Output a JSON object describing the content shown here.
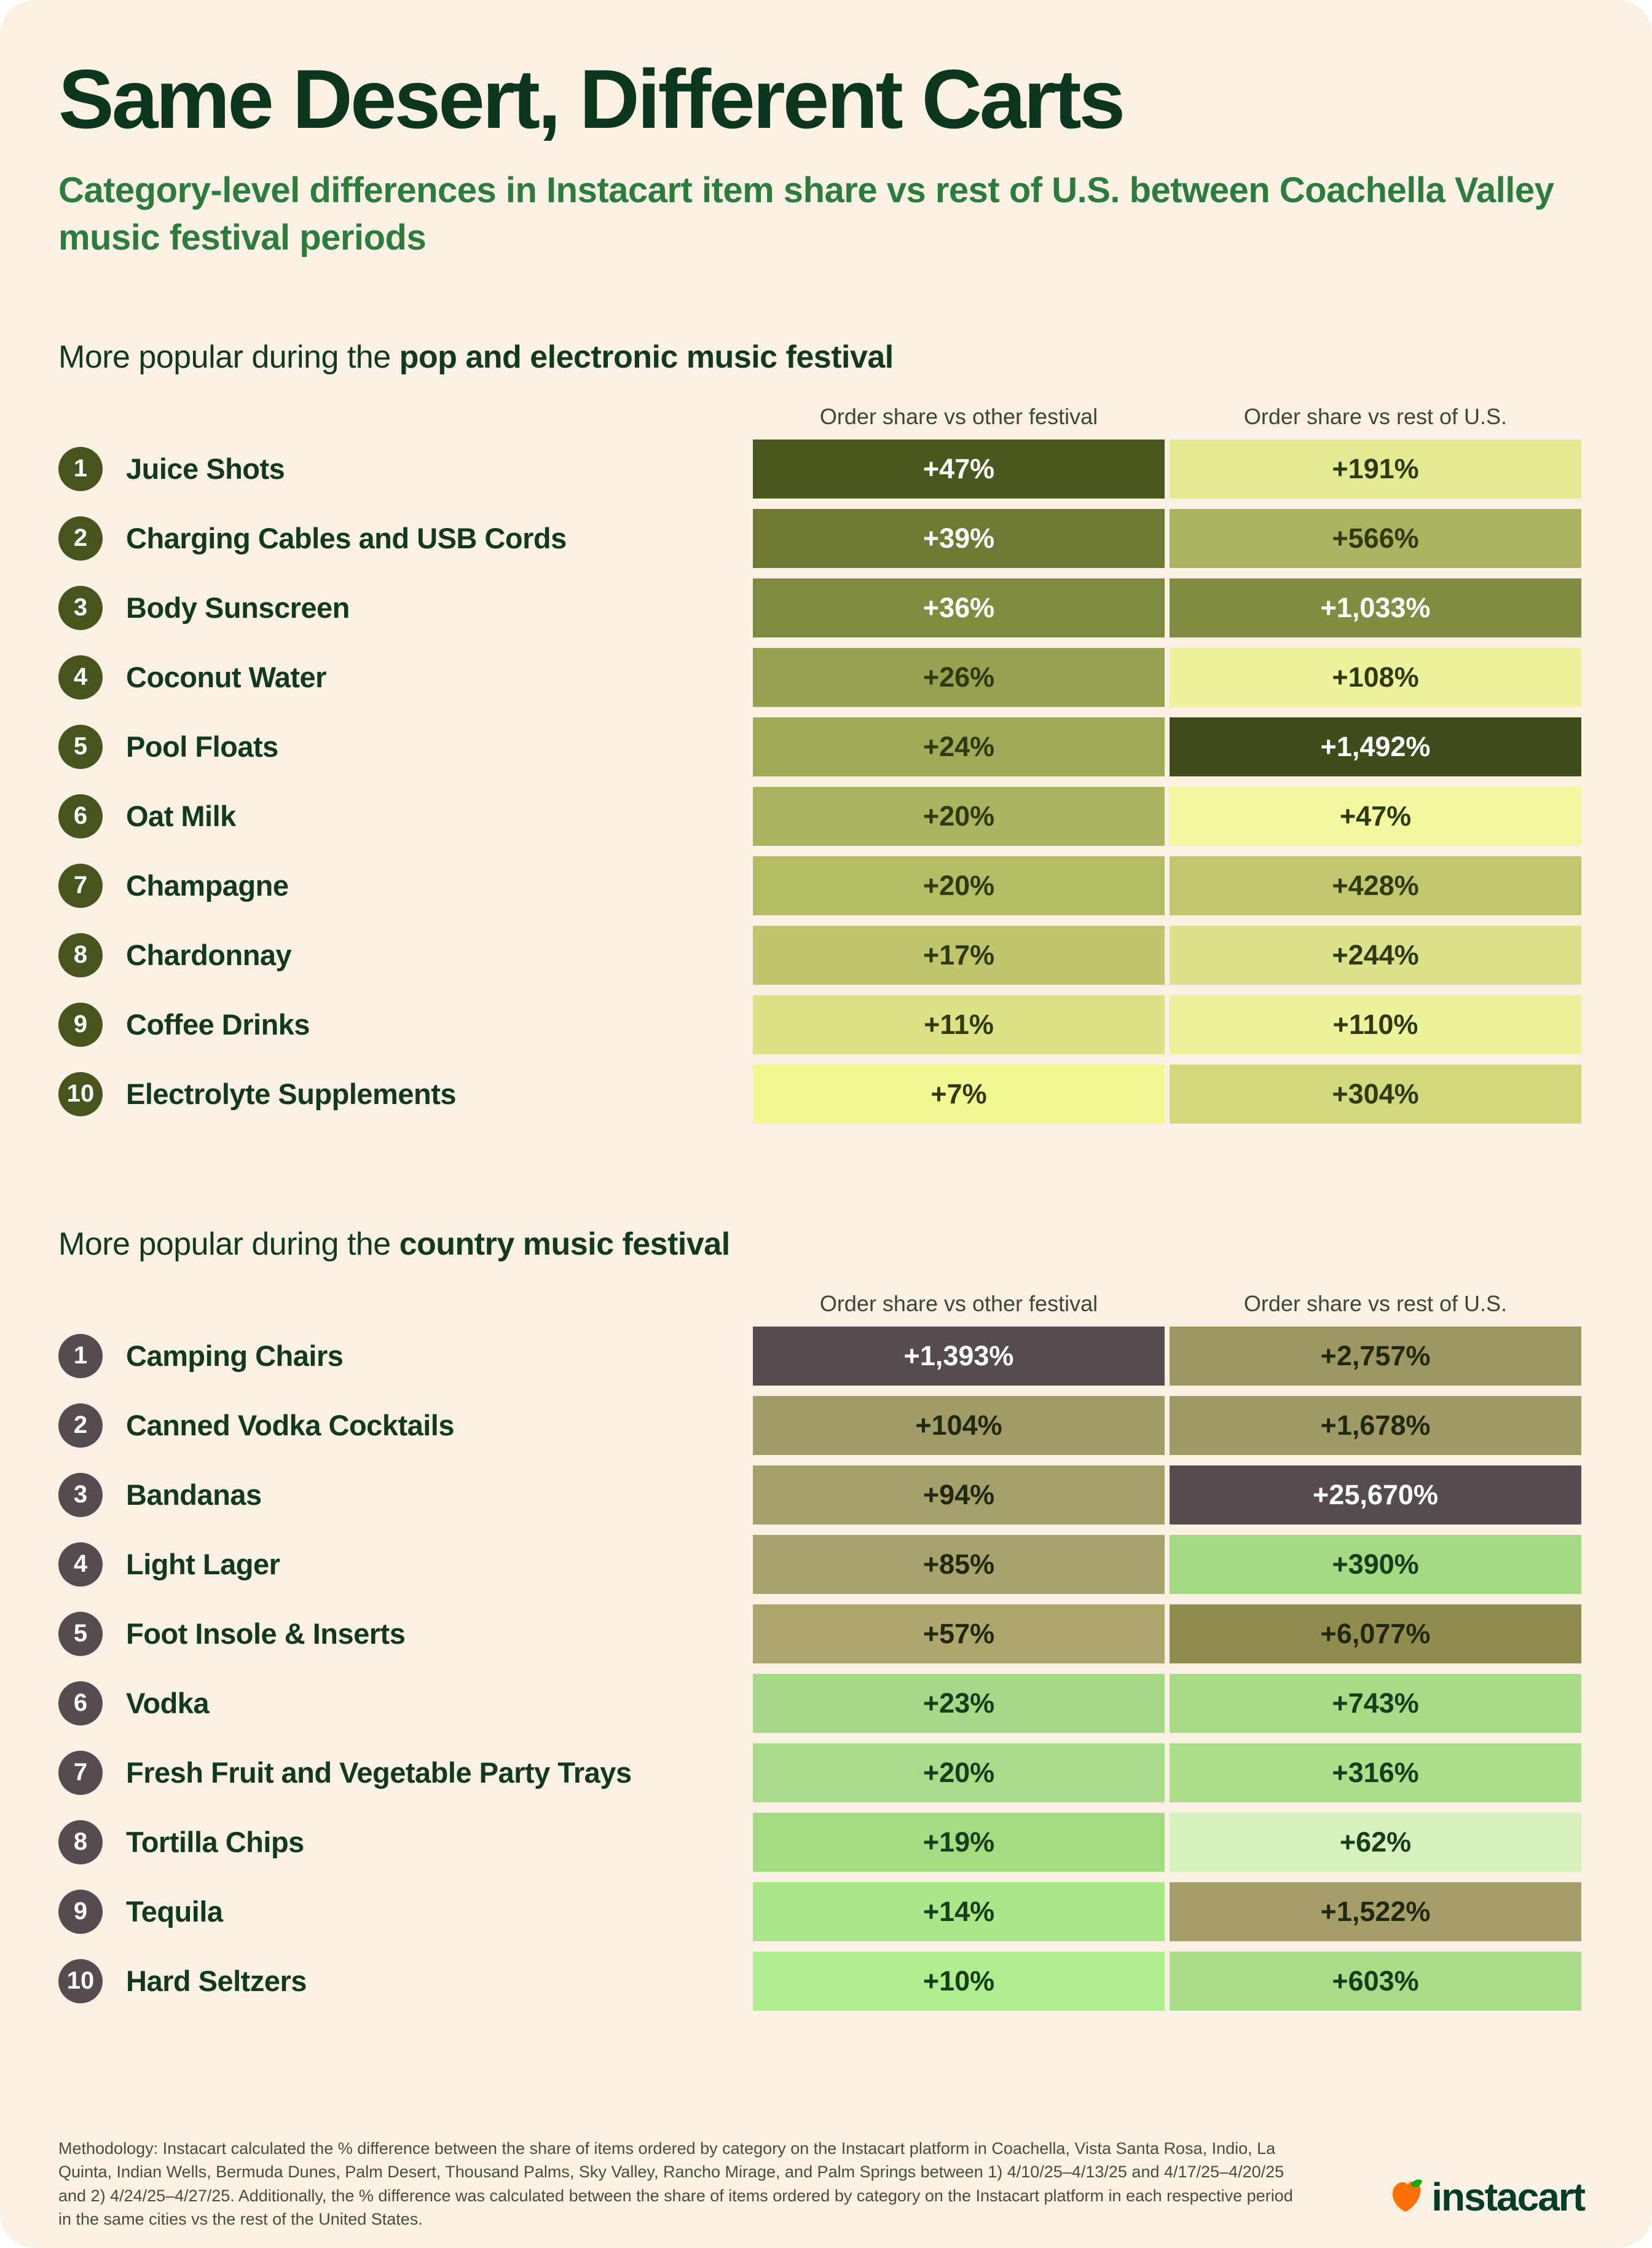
{
  "page": {
    "title": "Same Desert, Different Carts",
    "subtitle": "Category-level differences in Instacart item share vs rest of U.S. between Coachella Valley music festival periods",
    "background_color": "#FAF1E4",
    "title_color": "#0D361F",
    "subtitle_color": "#2C7C3F"
  },
  "columns": {
    "col1": "Order share vs other festival",
    "col2": "Order share vs rest of U.S."
  },
  "sections": [
    {
      "heading_prefix": "More popular during the ",
      "heading_bold": "pop and electronic music festival",
      "badge_color": "#47541E",
      "rows": [
        {
          "rank": "1",
          "label": "Juice Shots",
          "cells": [
            {
              "v": "+47%",
              "bg": "#4A581F",
              "fg": "#FFFFFF"
            },
            {
              "v": "+191%",
              "bg": "#E4EA94",
              "fg": "#303A10"
            }
          ]
        },
        {
          "rank": "2",
          "label": "Charging Cables and USB Cords",
          "cells": [
            {
              "v": "+39%",
              "bg": "#6C7A33",
              "fg": "#FFFFFF"
            },
            {
              "v": "+566%",
              "bg": "#ACB461",
              "fg": "#303A10"
            }
          ]
        },
        {
          "rank": "3",
          "label": "Body Sunscreen",
          "cells": [
            {
              "v": "+36%",
              "bg": "#7F8B3F",
              "fg": "#FFFFFF"
            },
            {
              "v": "+1,033%",
              "bg": "#828D43",
              "fg": "#FFFFFF"
            }
          ]
        },
        {
          "rank": "4",
          "label": "Coconut Water",
          "cells": [
            {
              "v": "+26%",
              "bg": "#97A150",
              "fg": "#303A10"
            },
            {
              "v": "+108%",
              "bg": "#EDF39C",
              "fg": "#303A10"
            }
          ]
        },
        {
          "rank": "5",
          "label": "Pool Floats",
          "cells": [
            {
              "v": "+24%",
              "bg": "#A1AA57",
              "fg": "#303A10"
            },
            {
              "v": "+1,492%",
              "bg": "#3F4C1B",
              "fg": "#FFFFFF"
            }
          ]
        },
        {
          "rank": "6",
          "label": "Oat Milk",
          "cells": [
            {
              "v": "+20%",
              "bg": "#ACB460",
              "fg": "#303A10"
            },
            {
              "v": "+47%",
              "bg": "#F3F9A1",
              "fg": "#303A10"
            }
          ]
        },
        {
          "rank": "7",
          "label": "Champagne",
          "cells": [
            {
              "v": "+20%",
              "bg": "#B5BC66",
              "fg": "#303A10"
            },
            {
              "v": "+428%",
              "bg": "#C1C76F",
              "fg": "#303A10"
            }
          ]
        },
        {
          "rank": "8",
          "label": "Chardonnay",
          "cells": [
            {
              "v": "+17%",
              "bg": "#C0C66E",
              "fg": "#303A10"
            },
            {
              "v": "+244%",
              "bg": "#DCE28C",
              "fg": "#303A10"
            }
          ]
        },
        {
          "rank": "9",
          "label": "Coffee Drinks",
          "cells": [
            {
              "v": "+11%",
              "bg": "#DDE287",
              "fg": "#303A10"
            },
            {
              "v": "+110%",
              "bg": "#EDF39C",
              "fg": "#303A10"
            }
          ]
        },
        {
          "rank": "10",
          "label": "Electrolyte Supplements",
          "cells": [
            {
              "v": "+7%",
              "bg": "#F3F992",
              "fg": "#303A10"
            },
            {
              "v": "+304%",
              "bg": "#D2D87E",
              "fg": "#303A10"
            }
          ]
        }
      ]
    },
    {
      "heading_prefix": "More popular during the ",
      "heading_bold": "country music festival",
      "badge_color": "#564B50",
      "rows": [
        {
          "rank": "1",
          "label": "Camping Chairs",
          "cells": [
            {
              "v": "+1,393%",
              "bg": "#564B50",
              "fg": "#FFFFFF"
            },
            {
              "v": "+2,757%",
              "bg": "#9D9763",
              "fg": "#20290E"
            }
          ]
        },
        {
          "rank": "2",
          "label": "Canned Vodka Cocktails",
          "cells": [
            {
              "v": "+104%",
              "bg": "#A29C68",
              "fg": "#20290E"
            },
            {
              "v": "+1,678%",
              "bg": "#A09A66",
              "fg": "#20290E"
            }
          ]
        },
        {
          "rank": "3",
          "label": "Bandanas",
          "cells": [
            {
              "v": "+94%",
              "bg": "#A59F6A",
              "fg": "#20290E"
            },
            {
              "v": "+25,670%",
              "bg": "#564B50",
              "fg": "#FFFFFF"
            }
          ]
        },
        {
          "rank": "4",
          "label": "Light Lager",
          "cells": [
            {
              "v": "+85%",
              "bg": "#A8A26C",
              "fg": "#20290E"
            },
            {
              "v": "+390%",
              "bg": "#A5DA85",
              "fg": "#173D1C"
            }
          ]
        },
        {
          "rank": "5",
          "label": "Foot Insole & Inserts",
          "cells": [
            {
              "v": "+57%",
              "bg": "#ADA76E",
              "fg": "#20290E"
            },
            {
              "v": "+6,077%",
              "bg": "#918C4F",
              "fg": "#20290E"
            }
          ]
        },
        {
          "rank": "6",
          "label": "Vodka",
          "cells": [
            {
              "v": "+23%",
              "bg": "#A6D987",
              "fg": "#173D1C"
            },
            {
              "v": "+743%",
              "bg": "#A7DB88",
              "fg": "#173D1C"
            }
          ]
        },
        {
          "rank": "7",
          "label": "Fresh Fruit and Vegetable Party Trays",
          "cells": [
            {
              "v": "+20%",
              "bg": "#A9DC8A",
              "fg": "#173D1C"
            },
            {
              "v": "+316%",
              "bg": "#ABDF8B",
              "fg": "#173D1C"
            }
          ]
        },
        {
          "rank": "8",
          "label": "Tortilla Chips",
          "cells": [
            {
              "v": "+19%",
              "bg": "#A3DC82",
              "fg": "#173D1C"
            },
            {
              "v": "+62%",
              "bg": "#D7F1BC",
              "fg": "#173D1C"
            }
          ]
        },
        {
          "rank": "9",
          "label": "Tequila",
          "cells": [
            {
              "v": "+14%",
              "bg": "#A9E788",
              "fg": "#173D1C"
            },
            {
              "v": "+1,522%",
              "bg": "#A59E68",
              "fg": "#20290E"
            }
          ]
        },
        {
          "rank": "10",
          "label": "Hard Seltzers",
          "cells": [
            {
              "v": "+10%",
              "bg": "#AFED8F",
              "fg": "#173D1C"
            },
            {
              "v": "+603%",
              "bg": "#A9DD89",
              "fg": "#173D1C"
            }
          ]
        }
      ]
    }
  ],
  "footer": {
    "methodology": "Methodology: Instacart calculated the % difference between the share of items ordered by category on the Instacart platform in Coachella, Vista Santa Rosa, Indio, La Quinta, Indian Wells, Bermuda Dunes, Palm Desert, Thousand Palms, Sky Valley, Rancho Mirage, and Palm Springs between 1) 4/10/25–4/13/25 and 4/17/25–4/20/25 and 2) 4/24/25–4/27/25. Additionally, the % difference was calculated between the share of items ordered by category on the Instacart platform in each respective period in the same cities vs the rest of the United States.",
    "logo_text": "instacart",
    "logo_text_color": "#003D29",
    "carrot_body_color": "#FF7009",
    "carrot_leaf_color": "#0AAD0A"
  },
  "chart_data": [
    {
      "type": "table",
      "title": "More popular during the pop and electronic music festival",
      "columns": [
        "Rank",
        "Category",
        "Order share vs other festival",
        "Order share vs rest of U.S."
      ],
      "rows": [
        {
          "rank": 1,
          "category": "Juice Shots",
          "vs_other_festival_pct": 47,
          "vs_rest_of_us_pct": 191
        },
        {
          "rank": 2,
          "category": "Charging Cables and USB Cords",
          "vs_other_festival_pct": 39,
          "vs_rest_of_us_pct": 566
        },
        {
          "rank": 3,
          "category": "Body Sunscreen",
          "vs_other_festival_pct": 36,
          "vs_rest_of_us_pct": 1033
        },
        {
          "rank": 4,
          "category": "Coconut Water",
          "vs_other_festival_pct": 26,
          "vs_rest_of_us_pct": 108
        },
        {
          "rank": 5,
          "category": "Pool Floats",
          "vs_other_festival_pct": 24,
          "vs_rest_of_us_pct": 1492
        },
        {
          "rank": 6,
          "category": "Oat Milk",
          "vs_other_festival_pct": 20,
          "vs_rest_of_us_pct": 47
        },
        {
          "rank": 7,
          "category": "Champagne",
          "vs_other_festival_pct": 20,
          "vs_rest_of_us_pct": 428
        },
        {
          "rank": 8,
          "category": "Chardonnay",
          "vs_other_festival_pct": 17,
          "vs_rest_of_us_pct": 244
        },
        {
          "rank": 9,
          "category": "Coffee Drinks",
          "vs_other_festival_pct": 11,
          "vs_rest_of_us_pct": 110
        },
        {
          "rank": 10,
          "category": "Electrolyte Supplements",
          "vs_other_festival_pct": 7,
          "vs_rest_of_us_pct": 304
        }
      ]
    },
    {
      "type": "table",
      "title": "More popular during the country music festival",
      "columns": [
        "Rank",
        "Category",
        "Order share vs other festival",
        "Order share vs rest of U.S."
      ],
      "rows": [
        {
          "rank": 1,
          "category": "Camping Chairs",
          "vs_other_festival_pct": 1393,
          "vs_rest_of_us_pct": 2757
        },
        {
          "rank": 2,
          "category": "Canned Vodka Cocktails",
          "vs_other_festival_pct": 104,
          "vs_rest_of_us_pct": 1678
        },
        {
          "rank": 3,
          "category": "Bandanas",
          "vs_other_festival_pct": 94,
          "vs_rest_of_us_pct": 25670
        },
        {
          "rank": 4,
          "category": "Light Lager",
          "vs_other_festival_pct": 85,
          "vs_rest_of_us_pct": 390
        },
        {
          "rank": 5,
          "category": "Foot Insole & Inserts",
          "vs_other_festival_pct": 57,
          "vs_rest_of_us_pct": 6077
        },
        {
          "rank": 6,
          "category": "Vodka",
          "vs_other_festival_pct": 23,
          "vs_rest_of_us_pct": 743
        },
        {
          "rank": 7,
          "category": "Fresh Fruit and Vegetable Party Trays",
          "vs_other_festival_pct": 20,
          "vs_rest_of_us_pct": 316
        },
        {
          "rank": 8,
          "category": "Tortilla Chips",
          "vs_other_festival_pct": 19,
          "vs_rest_of_us_pct": 62
        },
        {
          "rank": 9,
          "category": "Tequila",
          "vs_other_festival_pct": 14,
          "vs_rest_of_us_pct": 1522
        },
        {
          "rank": 10,
          "category": "Hard Seltzers",
          "vs_other_festival_pct": 10,
          "vs_rest_of_us_pct": 603
        }
      ]
    }
  ]
}
